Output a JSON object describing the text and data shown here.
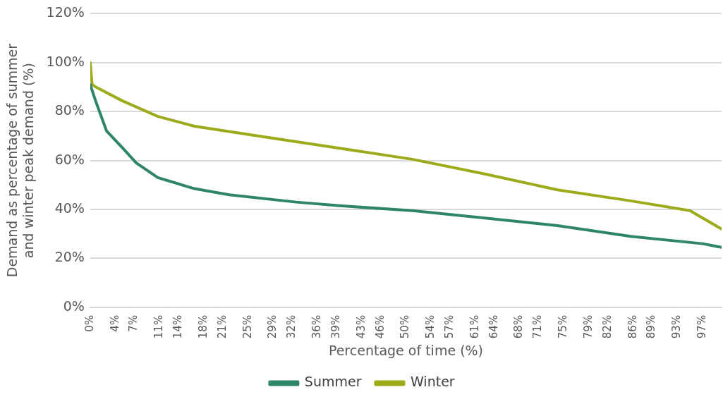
{
  "chart_data": {
    "type": "line",
    "xlabel": "Percentage of time (%)",
    "ylabel": "Demand as percentage of summer and winter peak demand (%)",
    "xlim": [
      0,
      100
    ],
    "xticks": [
      {
        "value": 0,
        "label": "0%"
      },
      {
        "value": 4,
        "label": "4%"
      },
      {
        "value": 7,
        "label": "7%"
      },
      {
        "value": 11,
        "label": "11%"
      },
      {
        "value": 14,
        "label": "14%"
      },
      {
        "value": 18,
        "label": "18%"
      },
      {
        "value": 21,
        "label": "21%"
      },
      {
        "value": 25,
        "label": "25%"
      },
      {
        "value": 29,
        "label": "29%"
      },
      {
        "value": 32,
        "label": "32%"
      },
      {
        "value": 36,
        "label": "36%"
      },
      {
        "value": 39,
        "label": "39%"
      },
      {
        "value": 43,
        "label": "43%"
      },
      {
        "value": 46,
        "label": "46%"
      },
      {
        "value": 50,
        "label": "50%"
      },
      {
        "value": 54,
        "label": "54%"
      },
      {
        "value": 57,
        "label": "57%"
      },
      {
        "value": 61,
        "label": "61%"
      },
      {
        "value": 64,
        "label": "64%"
      },
      {
        "value": 68,
        "label": "68%"
      },
      {
        "value": 71,
        "label": "71%"
      },
      {
        "value": 75,
        "label": "75%"
      },
      {
        "value": 79,
        "label": "79%"
      },
      {
        "value": 82,
        "label": "82%"
      },
      {
        "value": 86,
        "label": "86%"
      },
      {
        "value": 89,
        "label": "89%"
      },
      {
        "value": 93,
        "label": "93%"
      },
      {
        "value": 97,
        "label": "97%"
      }
    ],
    "ylim": [
      0,
      120
    ],
    "yticks": [
      {
        "value": 0,
        "label": "0%"
      },
      {
        "value": 20,
        "label": "20%"
      },
      {
        "value": 40,
        "label": "40%"
      },
      {
        "value": 60,
        "label": "60%"
      },
      {
        "value": 80,
        "label": "80%"
      },
      {
        "value": 100,
        "label": "100%"
      },
      {
        "value": 120,
        "label": "120%"
      }
    ],
    "grid": "y",
    "legend": "bottom",
    "marker": "none",
    "line_style": "solid",
    "series": [
      {
        "name": "Summer",
        "color": "#2e856b",
        "x": [
          0,
          0.9,
          2.6,
          5,
          7.3,
          10.7,
          16.5,
          22,
          32.6,
          39.5,
          51,
          62.5,
          74,
          85.6,
          97,
          100
        ],
        "values": [
          91,
          84,
          72,
          65.5,
          59,
          53,
          48.5,
          46,
          43,
          41.5,
          39.5,
          36.5,
          33.4,
          29,
          26,
          24.5
        ]
      },
      {
        "name": "Winter",
        "color": "#9bab1a",
        "x": [
          0,
          0.3,
          0.9,
          5,
          10.7,
          16.5,
          28,
          39.5,
          51,
          62.5,
          74,
          85.6,
          95,
          97,
          100
        ],
        "values": [
          100,
          91,
          90,
          84.5,
          78,
          74,
          69.5,
          65,
          60.5,
          54.5,
          48,
          43.5,
          39.5,
          36.5,
          32
        ]
      }
    ]
  }
}
